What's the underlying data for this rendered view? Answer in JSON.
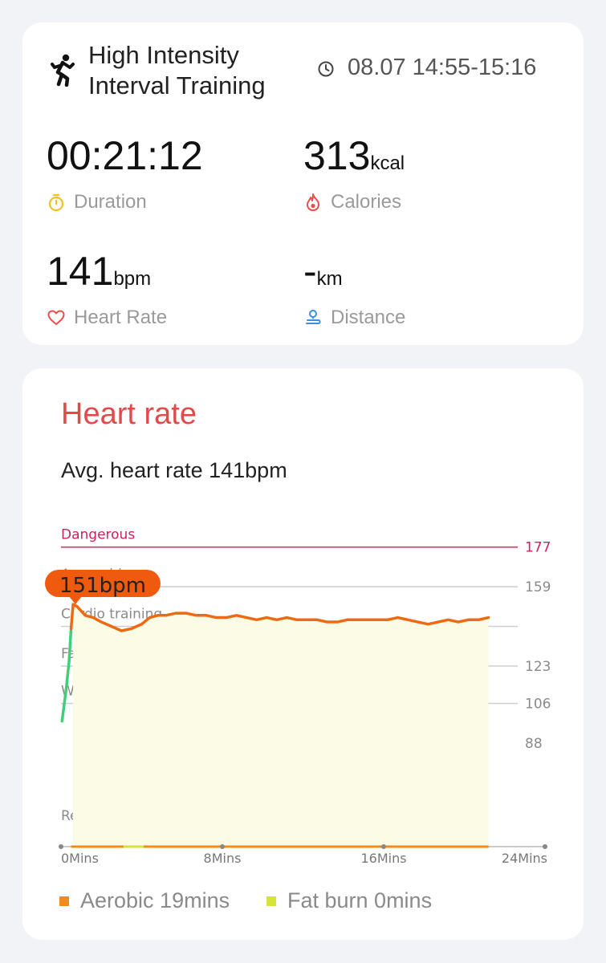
{
  "workout": {
    "title": "High Intensity Interval Training",
    "time": "08.07 14:55-15:16",
    "icon": "running-person-icon"
  },
  "metrics": {
    "duration": {
      "value": "00:21:12",
      "unit": "",
      "label": "Duration",
      "icon": "stopwatch-icon",
      "color": "#f2c21b"
    },
    "calories": {
      "value": "313",
      "unit": "kcal",
      "label": "Calories",
      "icon": "flame-icon",
      "color": "#ee4b4b"
    },
    "heart_rate": {
      "value": "141",
      "unit": "bpm",
      "label": "Heart Rate",
      "icon": "heart-icon",
      "color": "#ee4b4b"
    },
    "distance": {
      "value": "-",
      "unit": "km",
      "label": "Distance",
      "icon": "route-pin-icon",
      "color": "#3d8de0"
    }
  },
  "heart_rate_section": {
    "title": "Heart rate",
    "avg_text": "Avg. heart rate 141bpm",
    "peak_label": "151bpm",
    "legend": [
      {
        "label": "Aerobic 19mins",
        "color": "#f08c1e"
      },
      {
        "label": "Fat burn 0mins",
        "color": "#d6e33a"
      }
    ]
  },
  "chart_data": {
    "type": "line",
    "xlabel": "",
    "ylabel": "",
    "x_unit": "Mins",
    "xlim": [
      0,
      24
    ],
    "ylim": [
      41,
      182
    ],
    "x_ticks": [
      {
        "value": 0,
        "label": "0Mins"
      },
      {
        "value": 8,
        "label": "8Mins"
      },
      {
        "value": 16,
        "label": "16Mins"
      },
      {
        "value": 24,
        "label": "24Mins"
      }
    ],
    "zones": [
      {
        "name": "Dangerous",
        "threshold": 177,
        "color": "#d8436b"
      },
      {
        "name": "Anaerobic",
        "threshold": 159,
        "color": "#cccccc"
      },
      {
        "name": "Cardio training",
        "threshold": 141,
        "color": "#cccccc"
      },
      {
        "name": "Fat burning",
        "threshold": 123,
        "color": "#cccccc"
      },
      {
        "name": "Warm up",
        "threshold": 106,
        "color": "#cccccc"
      },
      {
        "name": "Resting",
        "threshold": 88,
        "color": "#cccccc"
      }
    ],
    "threshold_labels": [
      177,
      159,
      123,
      106,
      88
    ],
    "series": [
      {
        "name": "",
        "line_color": "#ee6a12",
        "warmup_color": "#3fcf7a",
        "fill_color": "#fbfbe6",
        "peak": {
          "x": 0.6,
          "y": 151
        },
        "points": [
          [
            0.05,
            98
          ],
          [
            0.25,
            112
          ],
          [
            0.4,
            125
          ],
          [
            0.5,
            140
          ],
          [
            0.6,
            151
          ],
          [
            0.8,
            150
          ],
          [
            1.2,
            146
          ],
          [
            1.6,
            145
          ],
          [
            2.0,
            143
          ],
          [
            2.5,
            141
          ],
          [
            3.0,
            139
          ],
          [
            3.5,
            140
          ],
          [
            4.0,
            142
          ],
          [
            4.4,
            145
          ],
          [
            4.8,
            146
          ],
          [
            5.2,
            146
          ],
          [
            5.7,
            147
          ],
          [
            6.2,
            147
          ],
          [
            6.7,
            146
          ],
          [
            7.2,
            146
          ],
          [
            7.7,
            145
          ],
          [
            8.2,
            145
          ],
          [
            8.7,
            146
          ],
          [
            9.2,
            145
          ],
          [
            9.7,
            144
          ],
          [
            10.2,
            145
          ],
          [
            10.7,
            144
          ],
          [
            11.2,
            145
          ],
          [
            11.7,
            144
          ],
          [
            12.2,
            144
          ],
          [
            12.7,
            144
          ],
          [
            13.2,
            143
          ],
          [
            13.7,
            143
          ],
          [
            14.2,
            144
          ],
          [
            14.7,
            144
          ],
          [
            15.2,
            144
          ],
          [
            15.7,
            144
          ],
          [
            16.2,
            144
          ],
          [
            16.7,
            145
          ],
          [
            17.2,
            144
          ],
          [
            17.7,
            143
          ],
          [
            18.2,
            142
          ],
          [
            18.7,
            143
          ],
          [
            19.2,
            144
          ],
          [
            19.7,
            143
          ],
          [
            20.2,
            144
          ],
          [
            20.7,
            144
          ],
          [
            21.2,
            145
          ]
        ]
      }
    ],
    "zone_bars": [
      {
        "zone": "Aerobic",
        "from": 0.5,
        "to": 21.2,
        "color": "#f08c1e"
      },
      {
        "zone": "Fat burn",
        "from": 3.1,
        "to": 4.1,
        "color": "#d6e33a"
      }
    ]
  }
}
